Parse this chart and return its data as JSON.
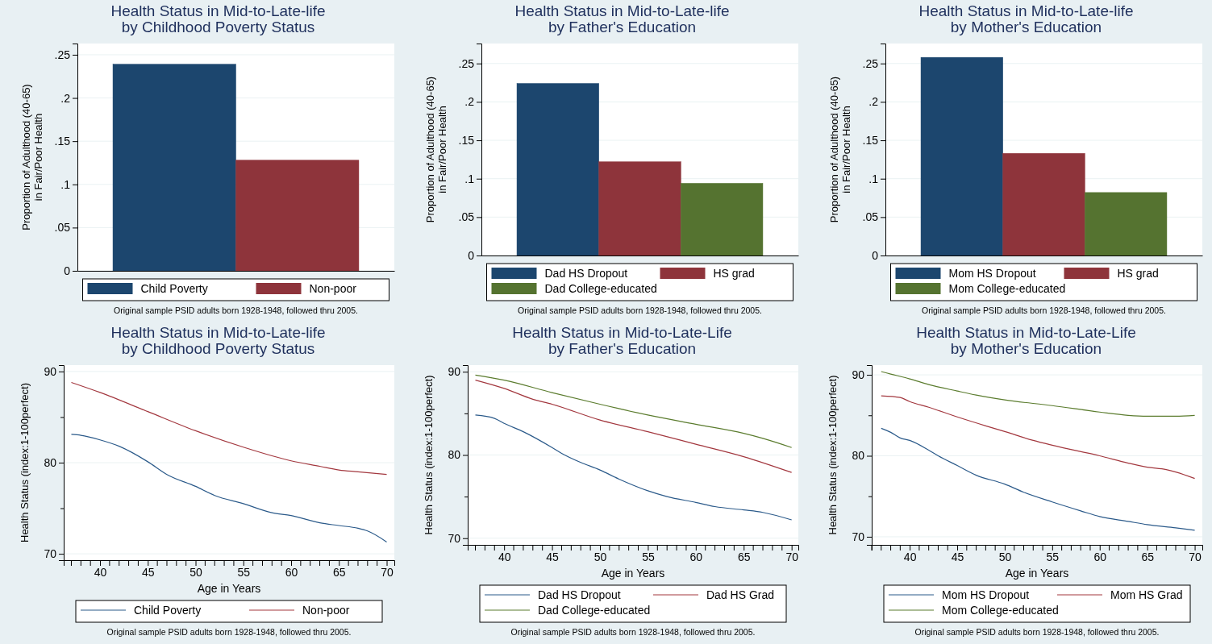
{
  "chart_data": [
    {
      "type": "bar",
      "title": "Health Status in Mid-to-Late-life\nby Childhood Poverty Status",
      "ylabel": "Proportion of Adulthood (40-65)\nin Fair/Poor Health",
      "categories": [
        null
      ],
      "series": [
        {
          "name": "Child Poverty",
          "color": "#1c466e",
          "values": [
            0.239
          ]
        },
        {
          "name": "Non-poor",
          "color": "#8e343b",
          "values": [
            0.128
          ]
        }
      ],
      "ylim": [
        0,
        0.263
      ],
      "yticks": [
        {
          "value": 0,
          "label": "0"
        },
        {
          "value": 0.05,
          "label": ".05"
        },
        {
          "value": 0.1,
          "label": ".1"
        },
        {
          "value": 0.15,
          "label": ".15"
        },
        {
          "value": 0.2,
          "label": ".2"
        },
        {
          "value": 0.25,
          "label": ".25"
        }
      ],
      "grid": "y",
      "legend": "bottom",
      "annotations": [
        "Original sample PSID adults born 1928-1948, followed thru 2005."
      ]
    },
    {
      "type": "bar",
      "title": "Health Status in Mid-to-Late-life\nby Father's Education",
      "ylabel": "Proportion of Adulthood (40-65)\nin Fair/Poor Health",
      "categories": [
        null
      ],
      "series": [
        {
          "name": "Dad HS Dropout",
          "color": "#1c466e",
          "values": [
            0.224
          ]
        },
        {
          "name": "HS grad",
          "color": "#8e343b",
          "values": [
            0.122
          ]
        },
        {
          "name": "Dad College-educated",
          "color": "#557330",
          "values": [
            0.094
          ]
        }
      ],
      "ylim": [
        0,
        0.276
      ],
      "yticks": [
        {
          "value": 0,
          "label": "0"
        },
        {
          "value": 0.05,
          "label": ".05"
        },
        {
          "value": 0.1,
          "label": ".1"
        },
        {
          "value": 0.15,
          "label": ".15"
        },
        {
          "value": 0.2,
          "label": ".2"
        },
        {
          "value": 0.25,
          "label": ".25"
        }
      ],
      "grid": "y",
      "legend": "bottom",
      "annotations": [
        "Original sample PSID adults born 1928-1948, followed thru 2005."
      ]
    },
    {
      "type": "bar",
      "title": "Health Status in Mid-to-Late-life\nby Mother's Education",
      "ylabel": "Proportion of Adulthood (40-65)\nin Fair/Poor Health",
      "categories": [
        null
      ],
      "series": [
        {
          "name": "Mom HS Dropout",
          "color": "#1c466e",
          "values": [
            0.258
          ]
        },
        {
          "name": "HS grad",
          "color": "#8e343b",
          "values": [
            0.133
          ]
        },
        {
          "name": "Mom College-educated",
          "color": "#557330",
          "values": [
            0.082
          ]
        }
      ],
      "ylim": [
        0,
        0.276
      ],
      "yticks": [
        {
          "value": 0,
          "label": "0"
        },
        {
          "value": 0.05,
          "label": ".05"
        },
        {
          "value": 0.1,
          "label": ".1"
        },
        {
          "value": 0.15,
          "label": ".15"
        },
        {
          "value": 0.2,
          "label": ".2"
        },
        {
          "value": 0.25,
          "label": ".25"
        }
      ],
      "grid": "y",
      "legend": "bottom",
      "annotations": [
        "Original sample PSID adults born 1928-1948, followed thru 2005."
      ]
    },
    {
      "type": "line",
      "title": "Health Status in Mid-to-Late-life\nby Childhood Poverty Status",
      "xlabel": "Age in Years",
      "ylabel": "Health Status (index:1-100perfect)",
      "series": [
        {
          "name": "Child Poverty",
          "color": "#2b5a8a",
          "x": [
            37,
            38,
            40,
            42,
            45,
            47,
            50,
            52,
            55,
            58,
            60,
            63,
            65,
            67,
            68,
            70
          ],
          "values": [
            83.1,
            83.0,
            82.5,
            81.8,
            80.1,
            78.7,
            77.4,
            76.4,
            75.5,
            74.5,
            74.2,
            73.4,
            73.1,
            72.8,
            72.5,
            71.3
          ]
        },
        {
          "name": "Non-poor",
          "color": "#a3383f",
          "x": [
            37,
            40,
            45,
            50,
            55,
            60,
            63,
            65,
            67,
            70
          ],
          "values": [
            88.8,
            87.7,
            85.6,
            83.5,
            81.7,
            80.2,
            79.6,
            79.2,
            79.0,
            78.7
          ]
        }
      ],
      "xlim": [
        36.2,
        70.8
      ],
      "xticks": [
        40,
        45,
        50,
        55,
        60,
        65,
        70
      ],
      "ylim": [
        69.3,
        90.7
      ],
      "yticks": [
        70,
        {
          "value": 75,
          "label": null
        },
        80,
        {
          "value": 85,
          "label": null
        },
        90
      ],
      "grid": "y",
      "legend": "bottom",
      "line_style": "solid",
      "marker": "none",
      "annotations": [
        "Original sample PSID adults born 1928-1948, followed thru 2005."
      ]
    },
    {
      "type": "line",
      "title": "Health Status in Mid-to-Late-Life\nby Father's Education",
      "xlabel": "Age in Years",
      "ylabel": "Health Status (index:1-100perfect)",
      "series": [
        {
          "name": "Dad HS Dropout",
          "color": "#2b5a8a",
          "x": [
            37,
            39,
            40,
            42,
            45,
            46,
            48,
            50,
            52,
            55,
            57,
            60,
            62,
            65,
            67,
            70
          ],
          "values": [
            84.8,
            84.4,
            83.8,
            82.8,
            80.9,
            80.2,
            79.1,
            78.2,
            77.1,
            75.7,
            75.0,
            74.3,
            73.8,
            73.4,
            73.1,
            72.2
          ]
        },
        {
          "name": "Dad HS Grad",
          "color": "#a3383f",
          "x": [
            37,
            40,
            43,
            45,
            50,
            55,
            60,
            65,
            70
          ],
          "values": [
            89.0,
            88.0,
            86.7,
            86.1,
            84.2,
            82.8,
            81.3,
            79.8,
            77.9
          ]
        },
        {
          "name": "Dad College-educated",
          "color": "#5b7c2e",
          "x": [
            37,
            40,
            45,
            50,
            55,
            60,
            65,
            67,
            70
          ],
          "values": [
            89.6,
            89.0,
            87.5,
            86.1,
            84.8,
            83.7,
            82.6,
            82.0,
            80.9
          ]
        }
      ],
      "xlim": [
        36.2,
        70.7
      ],
      "xticks": [
        40,
        45,
        50,
        55,
        60,
        65,
        70
      ],
      "ylim": [
        69.2,
        90.8
      ],
      "yticks": [
        70,
        {
          "value": 75,
          "label": null
        },
        80,
        {
          "value": 85,
          "label": null
        },
        90
      ],
      "grid": "y",
      "legend": "bottom",
      "line_style": "solid",
      "marker": "none",
      "annotations": [
        "Original sample PSID adults born 1928-1948, followed thru 2005."
      ]
    },
    {
      "type": "line",
      "title": "Health Status in Mid-to-Late-Life\nby Mother's Education",
      "xlabel": "Age in Years",
      "ylabel": "Health Status (index:1-100perfect)",
      "series": [
        {
          "name": "Mom HS Dropout",
          "color": "#2b5a8a",
          "x": [
            37,
            38,
            39,
            40,
            42,
            43,
            45,
            47,
            50,
            52,
            55,
            58,
            60,
            63,
            65,
            68,
            70
          ],
          "values": [
            83.4,
            82.9,
            82.2,
            81.9,
            80.7,
            80.0,
            78.8,
            77.6,
            76.5,
            75.5,
            74.3,
            73.2,
            72.5,
            71.9,
            71.5,
            71.1,
            70.8
          ]
        },
        {
          "name": "Mom HS Grad",
          "color": "#a3383f",
          "x": [
            37,
            39,
            40,
            42,
            45,
            48,
            50,
            53,
            55,
            60,
            63,
            65,
            67,
            68,
            70
          ],
          "values": [
            87.4,
            87.2,
            86.7,
            86.0,
            84.8,
            83.7,
            83.0,
            81.9,
            81.3,
            80.0,
            79.1,
            78.6,
            78.3,
            78.0,
            77.2
          ]
        },
        {
          "name": "Mom College-educated",
          "color": "#5b7c2e",
          "x": [
            37,
            38,
            40,
            42,
            45,
            47,
            50,
            55,
            60,
            63,
            65,
            68,
            70
          ],
          "values": [
            90.4,
            90.1,
            89.5,
            88.8,
            88.0,
            87.5,
            86.9,
            86.2,
            85.4,
            85.0,
            84.9,
            84.9,
            85.0
          ]
        }
      ],
      "xlim": [
        36.0,
        70.8
      ],
      "xticks": [
        40,
        45,
        50,
        55,
        60,
        65,
        70
      ],
      "ylim": [
        69.0,
        91.2
      ],
      "yticks": [
        70,
        {
          "value": 75,
          "label": null
        },
        80,
        {
          "value": 85,
          "label": null
        },
        90
      ],
      "grid": "y",
      "legend": "bottom",
      "line_style": "solid",
      "marker": "none",
      "annotations": [
        "Original sample PSID adults born 1928-1948, followed thru 2005."
      ]
    }
  ]
}
